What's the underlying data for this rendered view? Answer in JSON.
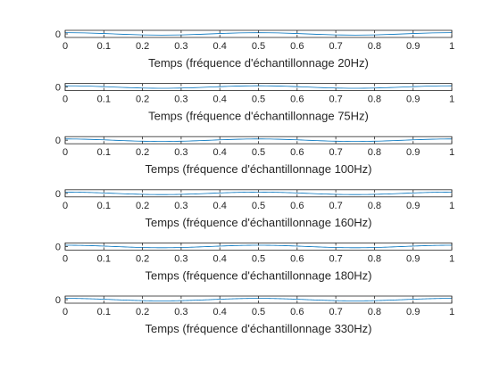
{
  "chart_data": [
    {
      "type": "line",
      "xlabel": "Temps (fréquence d'échantillonnage 20Hz)",
      "sample_rate_hz": 20,
      "xlim": [
        0,
        1
      ],
      "ylim": [
        -1,
        1
      ],
      "xticks": [
        "0",
        "0.1",
        "0.2",
        "0.3",
        "0.4",
        "0.5",
        "0.6",
        "0.7",
        "0.8",
        "0.9",
        "1"
      ],
      "yticks": [
        "0"
      ],
      "grid": false,
      "legend": "none",
      "line_color": "#0072BD"
    },
    {
      "type": "line",
      "xlabel": "Temps (fréquence d'échantillonnage 75Hz)",
      "sample_rate_hz": 75,
      "xlim": [
        0,
        1
      ],
      "ylim": [
        -1,
        1
      ],
      "xticks": [
        "0",
        "0.1",
        "0.2",
        "0.3",
        "0.4",
        "0.5",
        "0.6",
        "0.7",
        "0.8",
        "0.9",
        "1"
      ],
      "yticks": [
        "0"
      ],
      "grid": false,
      "legend": "none",
      "line_color": "#0072BD"
    },
    {
      "type": "line",
      "xlabel": "Temps (fréquence d'échantillonnage 100Hz)",
      "sample_rate_hz": 100,
      "xlim": [
        0,
        1
      ],
      "ylim": [
        -1,
        1
      ],
      "xticks": [
        "0",
        "0.1",
        "0.2",
        "0.3",
        "0.4",
        "0.5",
        "0.6",
        "0.7",
        "0.8",
        "0.9",
        "1"
      ],
      "yticks": [
        "0"
      ],
      "grid": false,
      "legend": "none",
      "line_color": "#0072BD"
    },
    {
      "type": "line",
      "xlabel": "Temps (fréquence d'échantillonnage 160Hz)",
      "sample_rate_hz": 160,
      "xlim": [
        0,
        1
      ],
      "ylim": [
        -1,
        1
      ],
      "xticks": [
        "0",
        "0.1",
        "0.2",
        "0.3",
        "0.4",
        "0.5",
        "0.6",
        "0.7",
        "0.8",
        "0.9",
        "1"
      ],
      "yticks": [
        "0"
      ],
      "grid": false,
      "legend": "none",
      "line_color": "#0072BD"
    },
    {
      "type": "line",
      "xlabel": "Temps (fréquence d'échantillonnage 180Hz)",
      "sample_rate_hz": 180,
      "xlim": [
        0,
        1
      ],
      "ylim": [
        -1,
        1
      ],
      "xticks": [
        "0",
        "0.1",
        "0.2",
        "0.3",
        "0.4",
        "0.5",
        "0.6",
        "0.7",
        "0.8",
        "0.9",
        "1"
      ],
      "yticks": [
        "0"
      ],
      "grid": false,
      "legend": "none",
      "line_color": "#0072BD"
    },
    {
      "type": "line",
      "xlabel": "Temps (fréquence d'échantillonnage 330Hz)",
      "sample_rate_hz": 330,
      "xlim": [
        0,
        1
      ],
      "ylim": [
        -1,
        1
      ],
      "xticks": [
        "0",
        "0.1",
        "0.2",
        "0.3",
        "0.4",
        "0.5",
        "0.6",
        "0.7",
        "0.8",
        "0.9",
        "1"
      ],
      "yticks": [
        "0"
      ],
      "grid": false,
      "legend": "none",
      "line_color": "#0072BD"
    }
  ]
}
